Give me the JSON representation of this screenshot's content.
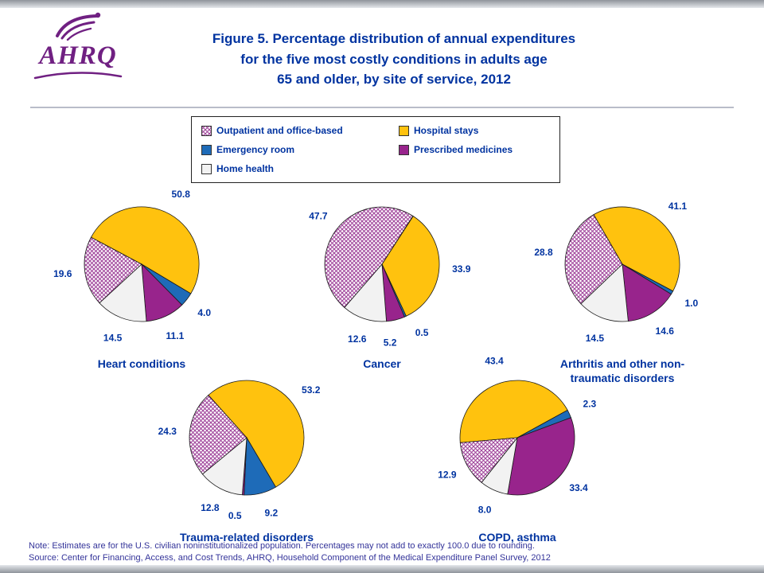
{
  "header": {
    "logo_text": "AHRQ",
    "title_lines": [
      "Figure 5. Percentage distribution of annual expenditures",
      "for the five most costly conditions in adults age",
      "65 and older, by site of service, 2012"
    ]
  },
  "legend": {
    "items": [
      {
        "key": "outpatient",
        "label": "Outpatient and office-based"
      },
      {
        "key": "hospital",
        "label": "Hospital stays"
      },
      {
        "key": "emergency",
        "label": "Emergency room"
      },
      {
        "key": "prescribed",
        "label": "Prescribed medicines"
      },
      {
        "key": "home",
        "label": "Home health"
      }
    ]
  },
  "footer": {
    "note": "Note: Estimates are for the U.S. civilian noninstitutionalized population. Percentages may not add to exactly 100.0 due to rounding.",
    "source": "Source: Center for Financing, Access, and Cost Trends, AHRQ, Household Component of the Medical Expenditure Panel Survey, 2012"
  },
  "colors": {
    "hospital": "#FFC20E",
    "emergency": "#1E6BB8",
    "prescribed": "#98248C",
    "home": "#F2F2F2",
    "outpatient_pattern": "#A0459B",
    "slice_stroke": "#1a1a1a",
    "title_text": "#0033A0",
    "footer_text": "#333399",
    "logo": "#702082"
  },
  "chart_data": {
    "type": "pie",
    "unit": "percent",
    "title": "Percentage distribution of annual expenditures for the five most costly conditions in adults age 65 and older, by site of service, 2012",
    "slice_order": [
      "hospital",
      "emergency",
      "prescribed",
      "home",
      "outpatient"
    ],
    "slice_labels": {
      "outpatient": "Outpatient and office-based",
      "hospital": "Hospital stays",
      "emergency": "Emergency room",
      "prescribed": "Prescribed medicines",
      "home": "Home health"
    },
    "charts": [
      {
        "id": "heart-conditions",
        "title_lines": [
          "Heart conditions"
        ],
        "start_angle": -62,
        "values": {
          "hospital": 50.8,
          "emergency": 4.0,
          "prescribed": 11.1,
          "home": 14.5,
          "outpatient": 19.6
        }
      },
      {
        "id": "cancer",
        "title_lines": [
          "Cancer"
        ],
        "start_angle": 33,
        "label_nudges": {
          "emergency": -6,
          "prescribed": 8
        },
        "values": {
          "hospital": 33.9,
          "emergency": 0.5,
          "prescribed": 5.2,
          "home": 12.6,
          "outpatient": 47.7
        }
      },
      {
        "id": "arthritis-nontraumatic-disorders",
        "title_lines": [
          "Arthritis and other non-",
          "traumatic disorders"
        ],
        "start_angle": -30,
        "values": {
          "hospital": 41.1,
          "emergency": 1.0,
          "prescribed": 14.6,
          "home": 14.5,
          "outpatient": 28.8
        }
      },
      {
        "id": "trauma-related-disorders",
        "title_lines": [
          "Trauma-related disorders"
        ],
        "start_angle": -42,
        "label_nudges": {
          "emergency": -4,
          "prescribed": 5
        },
        "values": {
          "hospital": 53.2,
          "emergency": 9.2,
          "prescribed": 0.5,
          "home": 12.8,
          "outpatient": 24.3
        }
      },
      {
        "id": "copd-asthma",
        "title_lines": [
          "COPD, asthma"
        ],
        "start_angle": -95,
        "values": {
          "hospital": 43.4,
          "emergency": 2.3,
          "prescribed": 33.4,
          "home": 8.0,
          "outpatient": 12.9
        }
      }
    ]
  }
}
